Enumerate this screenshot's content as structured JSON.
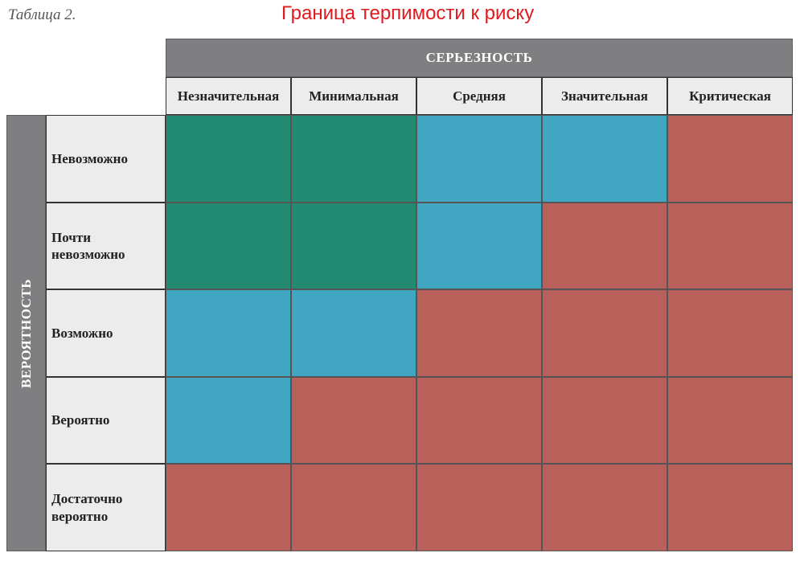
{
  "caption": "Таблица 2.",
  "title": "Граница терпимости к риску",
  "severity_label": "СЕРЬЕЗНОСТЬ",
  "probability_label": "ВЕРОЯТНОСТЬ",
  "severity_levels": [
    "Незначительная",
    "Минимальная",
    "Средняя",
    "Значительная",
    "Критическая"
  ],
  "probability_levels": [
    "Невозможно",
    "Почти невозможно",
    "Возможно",
    "Вероятно",
    "Достаточно вероятно"
  ],
  "colors": {
    "green": "#228a71",
    "blue": "#41a6c1",
    "red": "#b9605b"
  },
  "matrix": [
    [
      "green",
      "green",
      "blue",
      "blue",
      "red"
    ],
    [
      "green",
      "green",
      "blue",
      "red",
      "red"
    ],
    [
      "blue",
      "blue",
      "red",
      "red",
      "red"
    ],
    [
      "blue",
      "red",
      "red",
      "red",
      "red"
    ],
    [
      "red",
      "red",
      "red",
      "red",
      "red"
    ]
  ]
}
